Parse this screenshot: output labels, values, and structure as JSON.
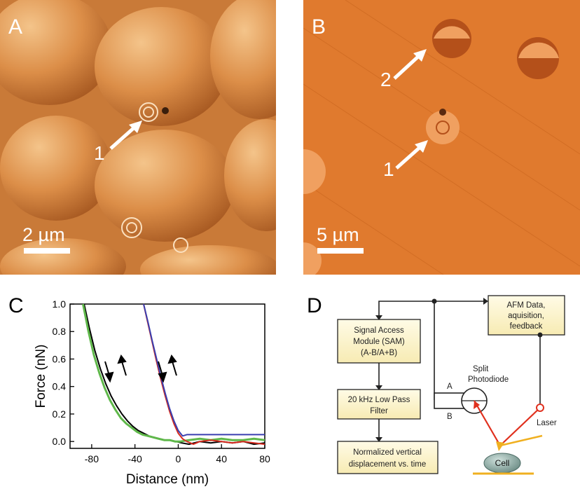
{
  "panels": {
    "a": {
      "letter": "A",
      "scale": "2 µm",
      "marker": "1"
    },
    "b": {
      "letter": "B",
      "scale": "5 µm",
      "markers": [
        "1",
        "2"
      ]
    },
    "c": {
      "letter": "C"
    },
    "d": {
      "letter": "D"
    }
  },
  "chart_data": {
    "type": "line",
    "xlabel": "Distance (nm)",
    "ylabel": "Force (nN)",
    "xlim": [
      -100,
      80
    ],
    "ylim": [
      -0.05,
      1.0
    ],
    "xticks": [
      "-80",
      "-40",
      "0",
      "40",
      "80"
    ],
    "yticks": [
      "0.0",
      "0.2",
      "0.4",
      "0.6",
      "0.8",
      "1.0"
    ],
    "colors": [
      "#000000",
      "#5fb84a",
      "#d62a1e",
      "#3a3fb0"
    ],
    "series": [
      {
        "x": [
          -87,
          -82,
          -77,
          -72,
          -67,
          -62,
          -57,
          -52,
          -47,
          -42,
          -37,
          -32,
          -27,
          -22,
          -17,
          -12,
          -7,
          -2,
          3,
          10,
          20,
          30,
          40,
          50,
          60,
          70,
          80
        ],
        "values": [
          1.0,
          0.82,
          0.66,
          0.53,
          0.42,
          0.33,
          0.26,
          0.2,
          0.15,
          0.11,
          0.08,
          0.06,
          0.04,
          0.03,
          0.02,
          0.01,
          0.01,
          0.0,
          -0.01,
          -0.02,
          0.0,
          -0.01,
          0.0,
          -0.01,
          0.0,
          -0.02,
          -0.01
        ]
      },
      {
        "x": [
          -88,
          -83,
          -78,
          -73,
          -68,
          -63,
          -58,
          -53,
          -48,
          -43,
          -38,
          -33,
          -28,
          -23,
          -18,
          -13,
          -8,
          -3,
          2,
          10,
          20,
          30,
          40,
          50,
          60,
          70,
          80
        ],
        "values": [
          1.0,
          0.8,
          0.63,
          0.5,
          0.39,
          0.3,
          0.23,
          0.17,
          0.13,
          0.1,
          0.07,
          0.05,
          0.04,
          0.03,
          0.02,
          0.01,
          0.01,
          0.0,
          0.0,
          0.01,
          0.02,
          0.01,
          0.02,
          0.01,
          0.01,
          0.02,
          0.01
        ]
      },
      {
        "x": [
          -32,
          -28,
          -24,
          -20,
          -16,
          -12,
          -8,
          -4,
          0,
          4,
          8,
          14,
          20,
          30,
          40,
          50,
          60,
          70,
          80
        ],
        "values": [
          1.0,
          0.86,
          0.72,
          0.58,
          0.45,
          0.33,
          0.22,
          0.13,
          0.06,
          0.02,
          0.0,
          -0.02,
          0.0,
          0.01,
          0.0,
          -0.01,
          0.0,
          -0.01,
          -0.02
        ]
      },
      {
        "x": [
          -32,
          -28,
          -24,
          -20,
          -16,
          -12,
          -8,
          -4,
          0,
          4,
          8,
          14,
          20,
          30,
          40,
          50,
          60,
          70,
          80
        ],
        "values": [
          1.0,
          0.87,
          0.73,
          0.6,
          0.47,
          0.35,
          0.24,
          0.15,
          0.08,
          0.04,
          0.05,
          0.05,
          0.05,
          0.05,
          0.05,
          0.05,
          0.05,
          0.05,
          0.05
        ]
      }
    ]
  },
  "diagram": {
    "sam": [
      "Signal Access",
      "Module (SAM)",
      "(A-B/A+B)"
    ],
    "lowpass": [
      "20 kHz Low Pass",
      "Filter"
    ],
    "normalized": [
      "Normalized vertical",
      "displacement vs. time"
    ],
    "afm": [
      "AFM Data,",
      "aquisition,",
      "feedback"
    ],
    "photodiode": [
      "Split",
      "Photodiode"
    ],
    "label_a": "A",
    "label_b": "B",
    "laser": "Laser",
    "cell": "Cell"
  }
}
